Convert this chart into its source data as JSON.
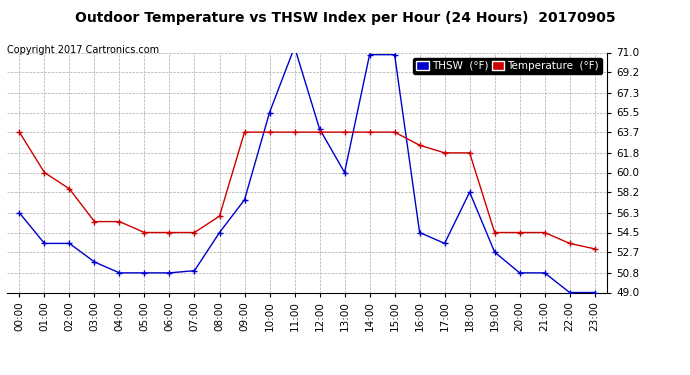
{
  "title": "Outdoor Temperature vs THSW Index per Hour (24 Hours)  20170905",
  "copyright": "Copyright 2017 Cartronics.com",
  "background_color": "#ffffff",
  "plot_background": "#ffffff",
  "grid_color": "#aaaaaa",
  "hours": [
    "00:00",
    "01:00",
    "02:00",
    "03:00",
    "04:00",
    "05:00",
    "06:00",
    "07:00",
    "08:00",
    "09:00",
    "10:00",
    "11:00",
    "12:00",
    "13:00",
    "14:00",
    "15:00",
    "16:00",
    "17:00",
    "18:00",
    "19:00",
    "20:00",
    "21:00",
    "22:00",
    "23:00"
  ],
  "thsw": [
    56.3,
    53.5,
    53.5,
    51.8,
    50.8,
    50.8,
    50.8,
    51.0,
    54.5,
    57.5,
    65.5,
    71.5,
    64.0,
    60.0,
    70.8,
    70.8,
    54.5,
    53.5,
    58.2,
    52.7,
    50.8,
    50.8,
    49.0,
    49.0
  ],
  "temperature": [
    63.7,
    60.0,
    58.5,
    55.5,
    55.5,
    54.5,
    54.5,
    54.5,
    56.0,
    63.7,
    63.7,
    63.7,
    63.7,
    63.7,
    63.7,
    63.7,
    62.5,
    61.8,
    61.8,
    54.5,
    54.5,
    54.5,
    53.5,
    53.0
  ],
  "thsw_color": "#0000cc",
  "temp_color": "#cc0000",
  "ylim_min": 49.0,
  "ylim_max": 71.0,
  "yticks": [
    49.0,
    50.8,
    52.7,
    54.5,
    56.3,
    58.2,
    60.0,
    61.8,
    63.7,
    65.5,
    67.3,
    69.2,
    71.0
  ],
  "legend_thsw_bg": "#0000cc",
  "legend_temp_bg": "#cc0000",
  "title_fontsize": 10,
  "copyright_fontsize": 7,
  "tick_fontsize": 7.5
}
